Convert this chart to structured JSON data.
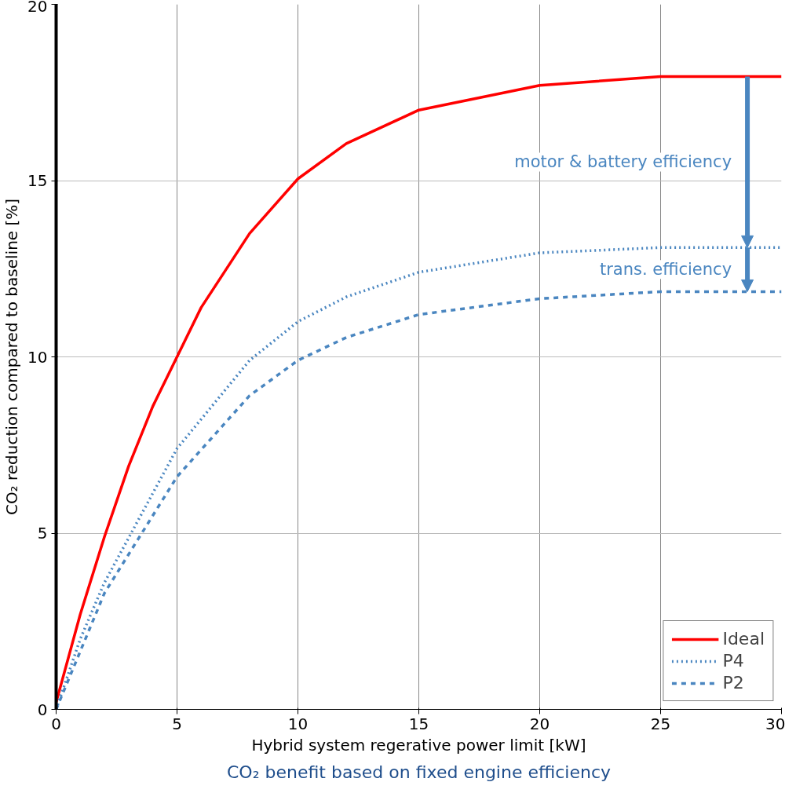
{
  "chart_data": {
    "type": "line",
    "xlabel": "Hybrid system regerative power limit [kW]",
    "ylabel": "CO₂ reduction compared to baseline [%]",
    "xlim": [
      0,
      30
    ],
    "ylim": [
      0,
      20
    ],
    "xticks": [
      0,
      5,
      10,
      15,
      20,
      25,
      30
    ],
    "yticks": [
      0,
      5,
      10,
      15,
      20
    ],
    "grid": true,
    "legend": "bottom right",
    "series": [
      {
        "name": "Ideal",
        "color": "#ff0000",
        "line_style": "solid",
        "x": [
          0,
          1,
          2,
          3,
          4,
          5,
          6,
          8,
          10,
          12,
          15,
          20,
          25,
          30
        ],
        "values": [
          0.2,
          2.7,
          4.9,
          6.9,
          8.6,
          10,
          11.4,
          13.5,
          15.05,
          16.05,
          17,
          17.7,
          17.95,
          17.95
        ]
      },
      {
        "name": "P4",
        "color": "#4a86c0",
        "line_style": "dotted",
        "x": [
          0,
          1,
          2,
          5,
          8,
          10,
          12,
          15,
          20,
          25,
          30
        ],
        "values": [
          0,
          2,
          3.6,
          7.4,
          9.9,
          11,
          11.7,
          12.4,
          12.95,
          13.1,
          13.1
        ]
      },
      {
        "name": "P2",
        "color": "#4a86c0",
        "line_style": "dashed",
        "x": [
          0,
          2,
          5,
          8,
          10,
          12,
          15,
          20,
          25,
          30
        ],
        "values": [
          0,
          3.3,
          6.6,
          8.9,
          9.9,
          10.55,
          11.2,
          11.65,
          11.85,
          11.85
        ]
      }
    ],
    "annotations": [
      "motor & battery efficiency",
      "trans. efficiency",
      "CO₂ benefit based on fixed engine efficiency"
    ]
  }
}
